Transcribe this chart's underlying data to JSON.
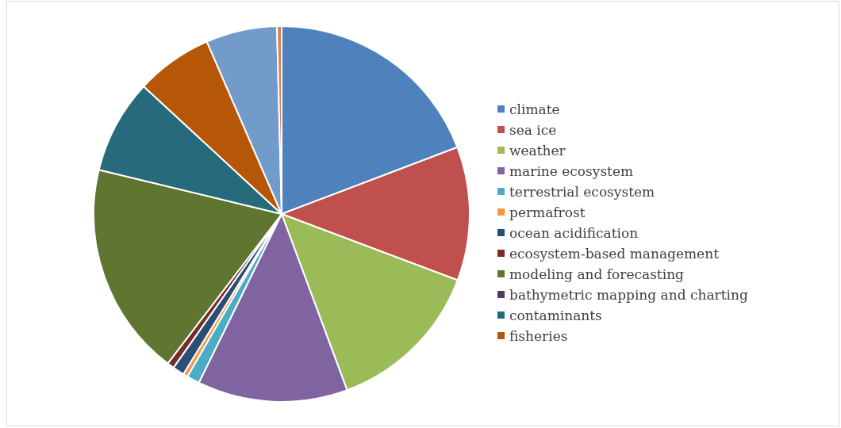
{
  "chart_data": {
    "type": "pie",
    "categories": [
      "climate",
      "sea ice",
      "weather",
      "marine ecosystem",
      "terrestrial ecosystem",
      "permafrost",
      "ocean acidification",
      "ecosystem-based management",
      "modeling and forecasting",
      "bathymetric mapping and charting",
      "contaminants",
      "fisheries",
      null,
      null
    ],
    "values": [
      19.2,
      11.5,
      13.6,
      12.9,
      1.1,
      0.4,
      1.0,
      0.6,
      18.4,
      null,
      8.1,
      6.6,
      6.1,
      0.4
    ],
    "colors": [
      "#4f81bd",
      "#c0504d",
      "#9bbb59",
      "#8064a2",
      "#4bacc6",
      "#f79646",
      "#2c4d75",
      "#772c2a",
      "#5f7530",
      "#4d3b62",
      "#276a7c",
      "#b65708",
      "#729aca",
      "#e07b54"
    ],
    "legend": "right"
  }
}
